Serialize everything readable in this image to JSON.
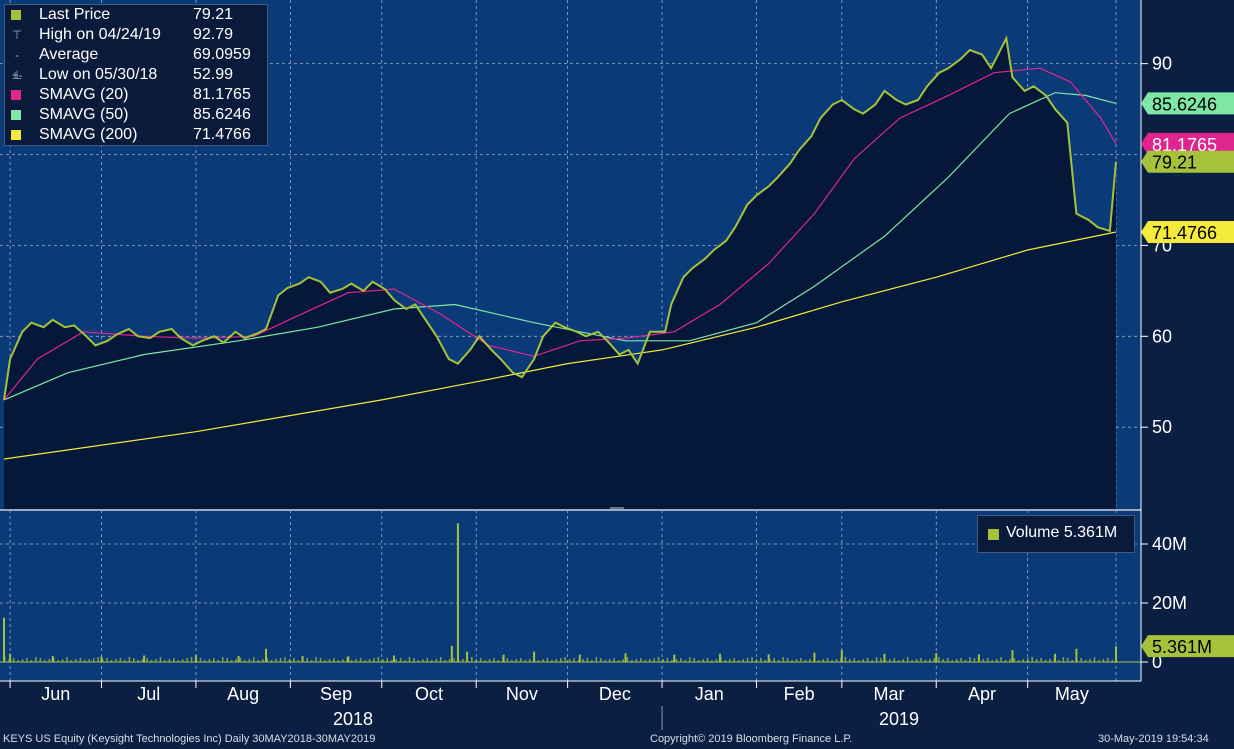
{
  "legend": {
    "last_price_label": "Last Price",
    "last_price_value": "79.21",
    "high_label": "High on 04/24/19",
    "high_value": "92.79",
    "average_label": "Average",
    "average_value": "69.0959",
    "low_label": "Low on 05/30/18",
    "low_value": "52.99",
    "sma20_label": "SMAVG (20)",
    "sma20_value": "81.1765",
    "sma50_label": "SMAVG (50)",
    "sma50_value": "85.6246",
    "sma200_label": "SMAVG (200)",
    "sma200_value": "71.4766"
  },
  "volume_legend": {
    "label": "Volume 5.361M"
  },
  "footer": {
    "security": "KEYS US Equity (Keysight Technologies Inc)  Daily 30MAY2018-30MAY2019",
    "copyright": "Copyright© 2019 Bloomberg Finance L.P.",
    "timestamp": "30-May-2019 19:54:34"
  },
  "colors": {
    "background": "#0b1f43",
    "price_fill": "#05183a",
    "last_price": "#a6c23c",
    "sma20": "#e0268e",
    "sma50": "#7fe6a6",
    "sma200": "#f4ea3c",
    "volume": "#a6c23c"
  },
  "chart_data": [
    {
      "type": "line",
      "x_axis": {
        "months": [
          "Jun",
          "Jul",
          "Aug",
          "Sep",
          "Oct",
          "Nov",
          "Dec",
          "Jan",
          "Feb",
          "Mar",
          "Apr",
          "May"
        ],
        "years": [
          "2018",
          "2019"
        ],
        "range": [
          "2018-05-30",
          "2019-05-30"
        ]
      },
      "ylim": [
        41,
        97
      ],
      "yticks": [
        50,
        60,
        70,
        90
      ],
      "grid": true,
      "series": [
        {
          "name": "Last Price",
          "points": [
            [
              "2018-05-30",
              52.99
            ],
            [
              "2018-06-01",
              57.5
            ],
            [
              "2018-06-05",
              60.5
            ],
            [
              "2018-06-08",
              61.5
            ],
            [
              "2018-06-12",
              61.0
            ],
            [
              "2018-06-15",
              61.8
            ],
            [
              "2018-06-19",
              61.0
            ],
            [
              "2018-06-22",
              61.2
            ],
            [
              "2018-06-26",
              60.0
            ],
            [
              "2018-06-29",
              59.0
            ],
            [
              "2018-07-03",
              59.5
            ],
            [
              "2018-07-06",
              60.2
            ],
            [
              "2018-07-10",
              60.8
            ],
            [
              "2018-07-13",
              60.0
            ],
            [
              "2018-07-17",
              59.8
            ],
            [
              "2018-07-20",
              60.5
            ],
            [
              "2018-07-24",
              60.8
            ],
            [
              "2018-07-27",
              59.8
            ],
            [
              "2018-07-31",
              59.0
            ],
            [
              "2018-08-03",
              59.5
            ],
            [
              "2018-08-07",
              60.0
            ],
            [
              "2018-08-10",
              59.3
            ],
            [
              "2018-08-14",
              60.5
            ],
            [
              "2018-08-17",
              59.8
            ],
            [
              "2018-08-21",
              60.3
            ],
            [
              "2018-08-24",
              60.8
            ],
            [
              "2018-08-28",
              64.5
            ],
            [
              "2018-08-31",
              65.3
            ],
            [
              "2018-09-04",
              65.8
            ],
            [
              "2018-09-07",
              66.5
            ],
            [
              "2018-09-11",
              66.0
            ],
            [
              "2018-09-14",
              64.8
            ],
            [
              "2018-09-18",
              65.2
            ],
            [
              "2018-09-21",
              65.8
            ],
            [
              "2018-09-25",
              65.0
            ],
            [
              "2018-09-28",
              66.0
            ],
            [
              "2018-10-02",
              65.2
            ],
            [
              "2018-10-05",
              64.0
            ],
            [
              "2018-10-09",
              63.0
            ],
            [
              "2018-10-12",
              63.5
            ],
            [
              "2018-10-16",
              61.5
            ],
            [
              "2018-10-19",
              60.0
            ],
            [
              "2018-10-23",
              57.5
            ],
            [
              "2018-10-26",
              57.0
            ],
            [
              "2018-10-30",
              58.5
            ],
            [
              "2018-11-02",
              60.0
            ],
            [
              "2018-11-06",
              58.5
            ],
            [
              "2018-11-09",
              57.5
            ],
            [
              "2018-11-13",
              56.0
            ],
            [
              "2018-11-16",
              55.5
            ],
            [
              "2018-11-20",
              57.5
            ],
            [
              "2018-11-23",
              60.0
            ],
            [
              "2018-11-27",
              61.5
            ],
            [
              "2018-11-30",
              61.0
            ],
            [
              "2018-12-04",
              60.5
            ],
            [
              "2018-12-07",
              60.0
            ],
            [
              "2018-12-11",
              60.5
            ],
            [
              "2018-12-14",
              59.5
            ],
            [
              "2018-12-18",
              58.0
            ],
            [
              "2018-12-21",
              58.5
            ],
            [
              "2018-12-24",
              57.0
            ],
            [
              "2018-12-28",
              60.5
            ],
            [
              "2019-01-02",
              60.5
            ],
            [
              "2019-01-04",
              63.5
            ],
            [
              "2019-01-08",
              66.5
            ],
            [
              "2019-01-11",
              67.5
            ],
            [
              "2019-01-15",
              68.5
            ],
            [
              "2019-01-18",
              69.5
            ],
            [
              "2019-01-22",
              70.5
            ],
            [
              "2019-01-25",
              72.0
            ],
            [
              "2019-01-29",
              74.5
            ],
            [
              "2019-02-01",
              75.5
            ],
            [
              "2019-02-05",
              76.5
            ],
            [
              "2019-02-08",
              77.5
            ],
            [
              "2019-02-12",
              79.0
            ],
            [
              "2019-02-15",
              80.5
            ],
            [
              "2019-02-19",
              82.0
            ],
            [
              "2019-02-22",
              84.0
            ],
            [
              "2019-02-26",
              85.5
            ],
            [
              "2019-03-01",
              86.0
            ],
            [
              "2019-03-05",
              85.0
            ],
            [
              "2019-03-08",
              84.5
            ],
            [
              "2019-03-12",
              85.5
            ],
            [
              "2019-03-15",
              87.0
            ],
            [
              "2019-03-19",
              86.0
            ],
            [
              "2019-03-22",
              85.5
            ],
            [
              "2019-03-26",
              86.0
            ],
            [
              "2019-03-29",
              87.5
            ],
            [
              "2019-04-02",
              89.0
            ],
            [
              "2019-04-05",
              89.5
            ],
            [
              "2019-04-09",
              90.5
            ],
            [
              "2019-04-12",
              91.5
            ],
            [
              "2019-04-16",
              91.0
            ],
            [
              "2019-04-19",
              89.5
            ],
            [
              "2019-04-24",
              92.79
            ],
            [
              "2019-04-26",
              88.5
            ],
            [
              "2019-04-30",
              87.0
            ],
            [
              "2019-05-03",
              87.5
            ],
            [
              "2019-05-07",
              86.5
            ],
            [
              "2019-05-10",
              85.0
            ],
            [
              "2019-05-14",
              83.5
            ],
            [
              "2019-05-17",
              73.5
            ],
            [
              "2019-05-21",
              72.8
            ],
            [
              "2019-05-24",
              72.0
            ],
            [
              "2019-05-28",
              71.6
            ],
            [
              "2019-05-30",
              79.21
            ]
          ]
        },
        {
          "name": "SMAVG (20)",
          "points": [
            [
              "2018-05-30",
              53.0
            ],
            [
              "2018-06-10",
              57.5
            ],
            [
              "2018-06-25",
              60.5
            ],
            [
              "2018-07-15",
              60.0
            ],
            [
              "2018-08-01",
              59.8
            ],
            [
              "2018-08-20",
              60.0
            ],
            [
              "2018-09-05",
              62.5
            ],
            [
              "2018-09-20",
              64.8
            ],
            [
              "2018-10-05",
              65.2
            ],
            [
              "2018-10-20",
              62.5
            ],
            [
              "2018-11-05",
              59.0
            ],
            [
              "2018-11-20",
              57.8
            ],
            [
              "2018-12-05",
              59.5
            ],
            [
              "2018-12-20",
              59.8
            ],
            [
              "2019-01-05",
              60.5
            ],
            [
              "2019-01-20",
              63.5
            ],
            [
              "2019-02-05",
              68.0
            ],
            [
              "2019-02-20",
              73.5
            ],
            [
              "2019-03-05",
              79.5
            ],
            [
              "2019-03-20",
              84.0
            ],
            [
              "2019-04-05",
              86.5
            ],
            [
              "2019-04-20",
              89.0
            ],
            [
              "2019-05-05",
              89.5
            ],
            [
              "2019-05-15",
              88.0
            ],
            [
              "2019-05-25",
              84.0
            ],
            [
              "2019-05-30",
              81.1765
            ]
          ]
        },
        {
          "name": "SMAVG (50)",
          "points": [
            [
              "2018-05-30",
              53.0
            ],
            [
              "2018-06-20",
              56.0
            ],
            [
              "2018-07-15",
              58.0
            ],
            [
              "2018-08-15",
              59.5
            ],
            [
              "2018-09-10",
              61.0
            ],
            [
              "2018-10-05",
              63.0
            ],
            [
              "2018-10-25",
              63.5
            ],
            [
              "2018-11-20",
              61.5
            ],
            [
              "2018-12-20",
              59.5
            ],
            [
              "2019-01-10",
              59.5
            ],
            [
              "2019-02-01",
              61.5
            ],
            [
              "2019-02-20",
              65.5
            ],
            [
              "2019-03-15",
              71.0
            ],
            [
              "2019-04-05",
              77.5
            ],
            [
              "2019-04-25",
              84.5
            ],
            [
              "2019-05-10",
              86.8
            ],
            [
              "2019-05-20",
              86.5
            ],
            [
              "2019-05-30",
              85.6246
            ]
          ]
        },
        {
          "name": "SMAVG (200)",
          "points": [
            [
              "2018-05-30",
              46.5
            ],
            [
              "2018-08-01",
              49.5
            ],
            [
              "2018-10-01",
              53.0
            ],
            [
              "2018-11-01",
              55.0
            ],
            [
              "2018-12-01",
              57.0
            ],
            [
              "2019-01-01",
              58.5
            ],
            [
              "2019-02-01",
              61.0
            ],
            [
              "2019-03-01",
              63.8
            ],
            [
              "2019-04-01",
              66.5
            ],
            [
              "2019-05-01",
              69.5
            ],
            [
              "2019-05-30",
              71.4766
            ]
          ]
        }
      ],
      "price_labels": [
        {
          "series": "SMAVG (50)",
          "text": "85.6246"
        },
        {
          "series": "SMAVG (20)",
          "text": "81.1765"
        },
        {
          "series": "Last Price",
          "text": "79.21"
        },
        {
          "series": "SMAVG (200)",
          "text": "71.4766"
        }
      ]
    },
    {
      "type": "bar",
      "name": "Volume",
      "yticks": [
        0,
        20,
        40
      ],
      "ytick_labels": [
        "0",
        "20M",
        "40M"
      ],
      "ylim": [
        0,
        52
      ],
      "last_value_label": "5.361M",
      "points": [
        [
          "2018-05-30",
          15.0
        ],
        [
          "2018-06-01",
          2.8
        ],
        [
          "2018-06-15",
          2.0
        ],
        [
          "2018-07-01",
          1.8
        ],
        [
          "2018-07-15",
          2.2
        ],
        [
          "2018-08-01",
          2.3
        ],
        [
          "2018-08-15",
          2.0
        ],
        [
          "2018-08-24",
          4.5
        ],
        [
          "2018-09-05",
          2.0
        ],
        [
          "2018-09-20",
          1.9
        ],
        [
          "2018-10-05",
          2.2
        ],
        [
          "2018-10-24",
          5.5
        ],
        [
          "2018-10-26",
          47.0
        ],
        [
          "2018-10-29",
          3.5
        ],
        [
          "2018-11-10",
          2.5
        ],
        [
          "2018-11-20",
          3.5
        ],
        [
          "2018-12-05",
          2.5
        ],
        [
          "2018-12-20",
          3.0
        ],
        [
          "2019-01-05",
          2.5
        ],
        [
          "2019-01-20",
          2.8
        ],
        [
          "2019-02-05",
          2.6
        ],
        [
          "2019-02-20",
          3.2
        ],
        [
          "2019-03-01",
          4.0
        ],
        [
          "2019-03-15",
          2.8
        ],
        [
          "2019-04-01",
          3.0
        ],
        [
          "2019-04-15",
          2.6
        ],
        [
          "2019-04-26",
          4.0
        ],
        [
          "2019-05-10",
          2.8
        ],
        [
          "2019-05-17",
          4.5
        ],
        [
          "2019-05-30",
          5.361
        ]
      ]
    }
  ]
}
